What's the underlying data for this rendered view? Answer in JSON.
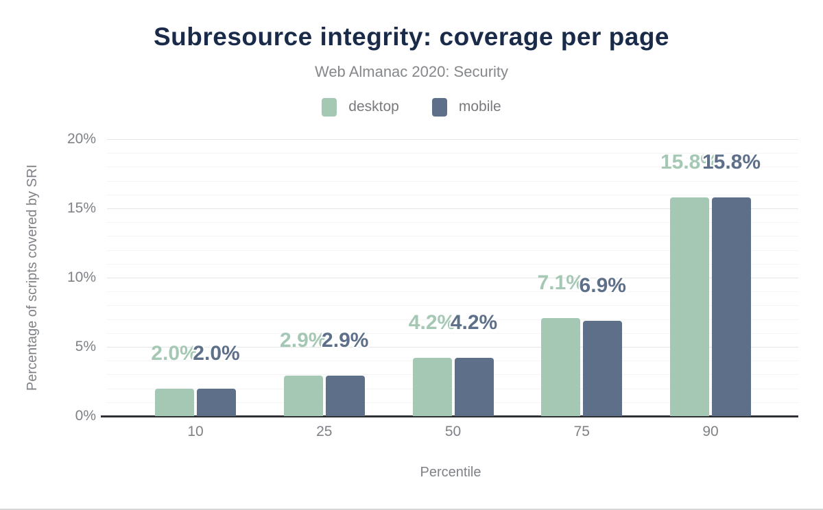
{
  "chart_data": {
    "type": "bar",
    "title": "Subresource integrity: coverage per page",
    "subtitle": "Web Almanac 2020: Security",
    "xlabel": "Percentile",
    "ylabel": "Percentage of scripts covered by SRI",
    "categories": [
      "10",
      "25",
      "50",
      "75",
      "90"
    ],
    "series": [
      {
        "name": "desktop",
        "color": "#a5c8b4",
        "values": [
          2.0,
          2.9,
          4.2,
          7.1,
          15.8
        ],
        "labels": [
          "2.0%",
          "2.9%",
          "4.2%",
          "7.1%",
          "15.8%"
        ]
      },
      {
        "name": "mobile",
        "color": "#5e7089",
        "values": [
          2.0,
          2.9,
          4.2,
          6.9,
          15.8
        ],
        "labels": [
          "2.0%",
          "2.9%",
          "4.2%",
          "6.9%",
          "15.8%"
        ]
      }
    ],
    "ylim": [
      0,
      20
    ],
    "yticks": [
      {
        "value": 0,
        "label": "0%"
      },
      {
        "value": 5,
        "label": "5%"
      },
      {
        "value": 10,
        "label": "10%"
      },
      {
        "value": 15,
        "label": "15%"
      },
      {
        "value": 20,
        "label": "20%"
      }
    ],
    "minor_grid_step": 1,
    "major_grid_step": 5,
    "grid": "horizontal",
    "legend_position": "top"
  },
  "colors": {
    "title": "#1a2b49",
    "subtitle": "#85878a",
    "axis_text": "#7e8186",
    "legend_text": "#77797c",
    "axis_line": "#2d3035",
    "major_grid": "#e5e5e5",
    "minor_grid": "#f4f4f5",
    "background": "#ffffff",
    "desktop_series": "#a5c8b4",
    "mobile_series": "#5e7089"
  }
}
